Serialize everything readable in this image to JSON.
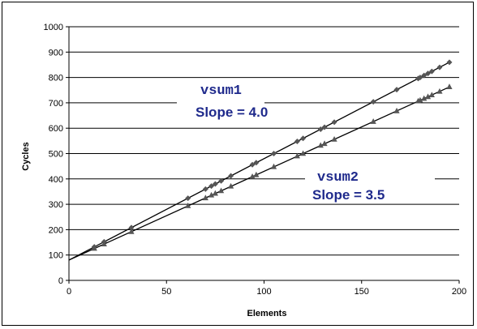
{
  "chart_data": {
    "type": "scatter",
    "title": "",
    "xlabel": "Elements",
    "ylabel": "Cycles",
    "xlim": [
      0,
      200
    ],
    "ylim": [
      0,
      1000
    ],
    "x_ticks": [
      "0",
      "50",
      "100",
      "150",
      "200"
    ],
    "y_ticks": [
      "0",
      "100",
      "200",
      "300",
      "400",
      "500",
      "600",
      "700",
      "800",
      "900",
      "1000"
    ],
    "grid": "horizontal",
    "legend": "none",
    "colors": {
      "line": "#000000",
      "marker": "#555555",
      "annotation": "#1f2a8c"
    },
    "series": [
      {
        "marker": "diamond",
        "fit": {
          "intercept": 80,
          "slope": 4.0
        },
        "x": [
          13,
          18,
          32,
          61,
          70,
          73,
          75,
          78,
          83,
          94,
          96,
          105,
          117,
          120,
          129,
          131,
          136,
          156,
          168,
          179,
          180,
          182,
          184,
          186,
          190,
          195
        ],
        "y": [
          132,
          152,
          208,
          324,
          360,
          372,
          380,
          392,
          412,
          456,
          464,
          500,
          548,
          560,
          596,
          604,
          624,
          704,
          752,
          796,
          800,
          808,
          816,
          824,
          840,
          860
        ]
      },
      {
        "marker": "triangle",
        "fit": {
          "intercept": 80,
          "slope": 3.5
        },
        "x": [
          13,
          18,
          32,
          61,
          70,
          73,
          75,
          78,
          83,
          94,
          96,
          105,
          117,
          120,
          129,
          131,
          136,
          156,
          168,
          179,
          180,
          182,
          184,
          186,
          190,
          195
        ],
        "y": [
          126,
          143,
          192,
          294,
          325,
          336,
          343,
          353,
          371,
          409,
          416,
          448,
          490,
          500,
          532,
          539,
          556,
          626,
          668,
          707,
          710,
          717,
          724,
          731,
          745,
          763
        ]
      }
    ],
    "annotations": [
      {
        "name": "vsum1",
        "slope_text": "Slope = 4.0"
      },
      {
        "name": "vsum2",
        "slope_text": "Slope = 3.5"
      }
    ]
  }
}
